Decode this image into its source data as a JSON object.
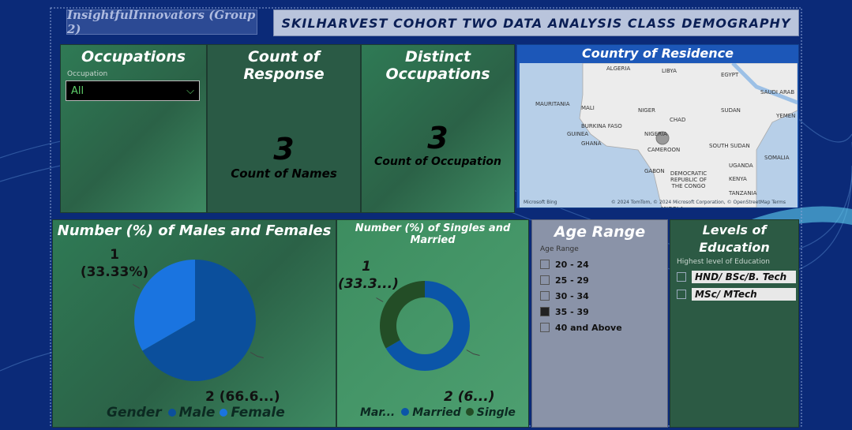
{
  "header": {
    "team": "InsightfulInnovators (Group 2)",
    "title": "SKILHARVEST COHORT TWO DATA ANALYSIS CLASS DEMOGRAPHY"
  },
  "occupations": {
    "title": "Occupations",
    "label": "Occupation",
    "selected": "All"
  },
  "count_card": {
    "title": "Count of Response",
    "value": 3,
    "label": "Count of Names"
  },
  "distinct_card": {
    "title": "Distinct Occupations",
    "value": 3,
    "label": "Count of Occupation"
  },
  "map": {
    "title": "Country of Residence",
    "places": [
      "ALGERIA",
      "LIBYA",
      "EGYPT",
      "SAUDI ARAB",
      "MAURITANIA",
      "MALI",
      "NIGER",
      "CHAD",
      "SUDAN",
      "YEMEN",
      "BURKINA FASO",
      "GUINEA",
      "GHANA",
      "NIGERIA",
      "CAMEROON",
      "SOUTH SUDAN",
      "SOMALIA",
      "GABON",
      "DEMOCRATIC REPUBLIC OF THE CONGO",
      "UGANDA",
      "KENYA",
      "TANZANIA",
      "ANGOLA"
    ],
    "brand": "Microsoft Bing",
    "attribution": "© 2024 TomTom, © 2024 Microsoft Corporation, © OpenStreetMap Terms"
  },
  "age": {
    "title": "Age Range",
    "label": "Age Range",
    "options": [
      "20 - 24",
      "25 - 29",
      "30 - 34",
      "35 - 39",
      "40 and Above"
    ],
    "selected": "35 - 39"
  },
  "education": {
    "title": "Levels of Education",
    "label": "Highest level of Education",
    "options": [
      "HND/ BSc/B. Tech",
      "MSc/ MTech"
    ]
  },
  "chart_data": [
    {
      "type": "pie",
      "title": "Number (%) of Males and Females",
      "legend_title": "Gender",
      "categories": [
        "Male",
        "Female"
      ],
      "values": [
        2,
        1
      ],
      "value_labels": [
        "2 (66.6...)",
        "1 (33.33%)"
      ],
      "colors": [
        "#0b4f9c",
        "#1a74e0"
      ]
    },
    {
      "type": "donut",
      "title": "Number (%) of Singles and Married",
      "legend_title": "Mar...",
      "categories": [
        "Married",
        "Single"
      ],
      "values": [
        2,
        1
      ],
      "value_labels": [
        "2 (6...)",
        "1 (33.3...)"
      ],
      "colors": [
        "#0b55a8",
        "#234d26"
      ]
    }
  ]
}
